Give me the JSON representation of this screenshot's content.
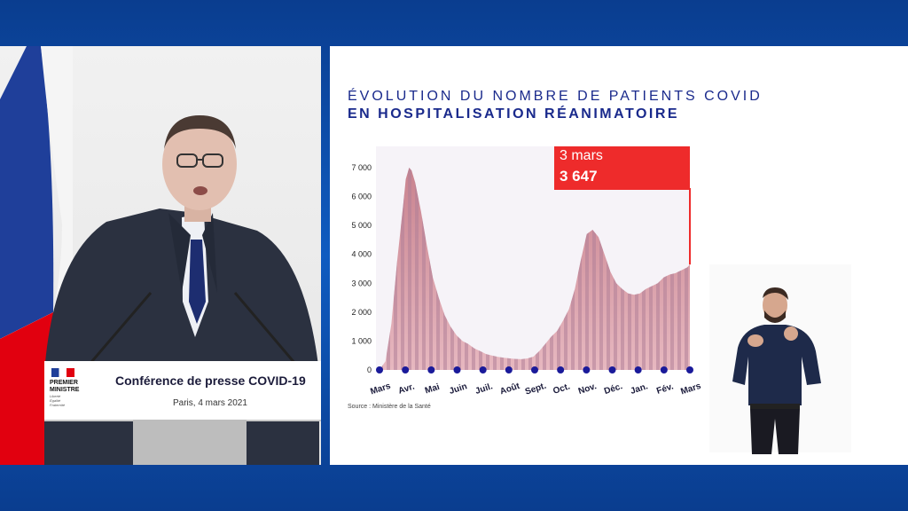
{
  "podium": {
    "logo_line1": "PREMIER",
    "logo_line2": "MINISTRE",
    "logo_motto": [
      "Liberté",
      "Égalité",
      "Fraternité"
    ],
    "title": "Conférence de presse COVID-19",
    "subtitle": "Paris, 4 mars 2021"
  },
  "colors": {
    "title_blue": "#1a2a8c",
    "callout_red": "#ee2b2b",
    "axis_dot": "#1a1a9a"
  },
  "chart": {
    "title_line1": "ÉVOLUTION DU NOMBRE DE PATIENTS COVID",
    "title_line2": "EN HOSPITALISATION RÉANIMATOIRE",
    "source": "Source : Ministère de la Santé",
    "callout_date": "3 mars",
    "callout_value": "3 647"
  },
  "chart_data": {
    "type": "area",
    "title": "ÉVOLUTION DU NOMBRE DE PATIENTS COVID EN HOSPITALISATION RÉANIMATOIRE",
    "ylim": [
      0,
      7000
    ],
    "y_ticks": [
      "0",
      "1 000",
      "2 000",
      "3 000",
      "4 000",
      "5 000",
      "6 000",
      "7 000"
    ],
    "x_tick_labels": [
      "Mars",
      "Avr.",
      "Mai",
      "Juin",
      "Juil.",
      "Août",
      "Sept.",
      "Oct.",
      "Nov.",
      "Déc.",
      "Jan.",
      "Fév.",
      "Mars"
    ],
    "x": [
      "2020-03-01",
      "2020-03-08",
      "2020-03-15",
      "2020-03-22",
      "2020-03-29",
      "2020-04-01",
      "2020-04-05",
      "2020-04-08",
      "2020-04-12",
      "2020-04-19",
      "2020-04-26",
      "2020-05-03",
      "2020-05-10",
      "2020-05-17",
      "2020-05-24",
      "2020-05-31",
      "2020-06-07",
      "2020-06-14",
      "2020-06-21",
      "2020-06-28",
      "2020-07-05",
      "2020-07-12",
      "2020-07-19",
      "2020-07-26",
      "2020-08-02",
      "2020-08-09",
      "2020-08-16",
      "2020-08-23",
      "2020-08-30",
      "2020-09-06",
      "2020-09-13",
      "2020-09-20",
      "2020-09-27",
      "2020-10-04",
      "2020-10-11",
      "2020-10-18",
      "2020-10-25",
      "2020-11-01",
      "2020-11-08",
      "2020-11-15",
      "2020-11-22",
      "2020-11-29",
      "2020-12-06",
      "2020-12-13",
      "2020-12-20",
      "2020-12-27",
      "2021-01-03",
      "2021-01-10",
      "2021-01-17",
      "2021-01-24",
      "2021-01-31",
      "2021-02-07",
      "2021-02-14",
      "2021-02-21",
      "2021-02-28",
      "2021-03-03"
    ],
    "values": [
      0,
      300,
      1600,
      3800,
      5700,
      6600,
      7000,
      6900,
      6500,
      5500,
      4300,
      3200,
      2500,
      1900,
      1500,
      1200,
      1000,
      900,
      750,
      650,
      550,
      500,
      450,
      420,
      400,
      380,
      370,
      400,
      460,
      650,
      900,
      1150,
      1350,
      1700,
      2100,
      2800,
      3800,
      4700,
      4850,
      4600,
      4000,
      3400,
      3000,
      2800,
      2650,
      2600,
      2650,
      2800,
      2900,
      3000,
      3200,
      3300,
      3350,
      3450,
      3550,
      3647
    ],
    "highlight": {
      "label": "3 mars",
      "value": "3 647"
    }
  }
}
